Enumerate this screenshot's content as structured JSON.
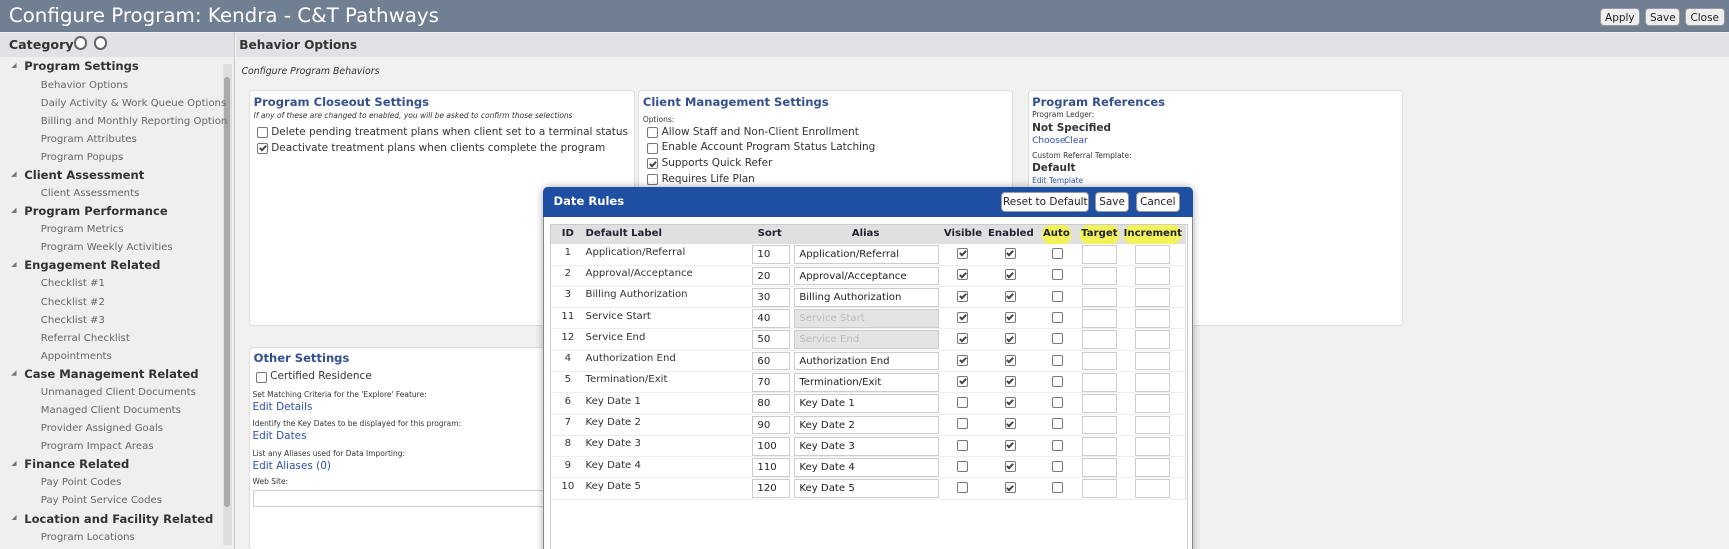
{
  "header": {
    "title": "Configure Program: Kendra - C&T Pathways",
    "buttons": [
      "Apply",
      "Save",
      "Close"
    ]
  },
  "sidebar": {
    "heading": "Category",
    "groups": [
      {
        "name": "Program Settings",
        "items": [
          "Behavior Options",
          "Daily Activity & Work Queue Options",
          "Billing and Monthly Reporting Option",
          "Program Attributes",
          "Program Popups"
        ]
      },
      {
        "name": "Client Assessment",
        "items": [
          "Client Assessments"
        ]
      },
      {
        "name": "Program Performance",
        "items": [
          "Program Metrics",
          "Program Weekly Activities"
        ]
      },
      {
        "name": "Engagement Related",
        "items": [
          "Checklist #1",
          "Checklist #2",
          "Checklist #3",
          "Referral Checklist",
          "Appointments"
        ]
      },
      {
        "name": "Case Management Related",
        "items": [
          "Unmanaged Client Documents",
          "Managed Client Documents",
          "Provider Assigned Goals",
          "Program Impact Areas"
        ]
      },
      {
        "name": "Finance Related",
        "items": [
          "Pay Point Codes",
          "Pay Point Service Codes"
        ]
      },
      {
        "name": "Location and Facility Related",
        "items": [
          "Program Locations"
        ]
      }
    ]
  },
  "main": {
    "heading": "Behavior Options",
    "subtitle": "Configure Program Behaviors",
    "closeout": {
      "title": "Program Closeout Settings",
      "note": "If any of these are changed to enabled, you will be asked to confirm those selections",
      "options": [
        {
          "label": "Delete pending treatment plans when client set to a terminal status",
          "checked": false
        },
        {
          "label": "Deactivate treatment plans when clients complete the program",
          "checked": true
        }
      ]
    },
    "client_management": {
      "title": "Client Management Settings",
      "options_label": "Options:",
      "options": [
        {
          "label": "Allow Staff and Non-Client Enrollment",
          "checked": false
        },
        {
          "label": "Enable Account Program Status Latching",
          "checked": false
        },
        {
          "label": "Supports Quick Refer",
          "checked": true
        },
        {
          "label": "Requires Life Plan",
          "checked": false
        }
      ]
    },
    "references": {
      "title": "Program References",
      "ledger_label": "Program Ledger:",
      "ledger_value": "Not Specified",
      "ledger_links": [
        "Choose",
        "Clear"
      ],
      "template_label": "Custom Referral Template:",
      "template_value": "Default",
      "template_link": "Edit Template"
    },
    "other": {
      "title": "Other Settings",
      "options": [
        {
          "label": "Certified Residence",
          "checked": false
        }
      ],
      "items": [
        {
          "label": "Set Matching Criteria for the 'Explore' Feature:",
          "link": "Edit Details"
        },
        {
          "label": "Identify the Key Dates to be displayed for this program:",
          "link": "Edit Dates"
        },
        {
          "label": "List any Aliases used for Data Importing:",
          "link": "Edit Aliases (0)"
        }
      ],
      "website_label": "Web Site:"
    }
  },
  "dialog": {
    "title": "Date Rules",
    "buttons": [
      "Reset to Default",
      "Save",
      "Cancel"
    ],
    "columns": [
      "ID",
      "Default Label",
      "Sort",
      "Alias",
      "Visible",
      "Enabled",
      "Auto",
      "Target",
      "Increment"
    ],
    "rows": [
      {
        "id": 1,
        "label": "Application/Referral",
        "sort": 10,
        "alias": "Application/Referral",
        "alias_disabled": false,
        "visible": true,
        "enabled": true,
        "auto": false
      },
      {
        "id": 2,
        "label": "Approval/Acceptance",
        "sort": 20,
        "alias": "Approval/Acceptance",
        "alias_disabled": false,
        "visible": true,
        "enabled": true,
        "auto": false
      },
      {
        "id": 3,
        "label": "Billing Authorization",
        "sort": 30,
        "alias": "Billing Authorization",
        "alias_disabled": false,
        "visible": true,
        "enabled": true,
        "auto": false
      },
      {
        "id": 11,
        "label": "Service Start",
        "sort": 40,
        "alias": "Service Start",
        "alias_disabled": true,
        "visible": true,
        "enabled": true,
        "auto": false
      },
      {
        "id": 12,
        "label": "Service End",
        "sort": 50,
        "alias": "Service End",
        "alias_disabled": true,
        "visible": true,
        "enabled": true,
        "auto": false
      },
      {
        "id": 4,
        "label": "Authorization End",
        "sort": 60,
        "alias": "Authorization End",
        "alias_disabled": false,
        "visible": true,
        "enabled": true,
        "auto": false
      },
      {
        "id": 5,
        "label": "Termination/Exit",
        "sort": 70,
        "alias": "Termination/Exit",
        "alias_disabled": false,
        "visible": true,
        "enabled": true,
        "auto": false
      },
      {
        "id": 6,
        "label": "Key Date 1",
        "sort": 80,
        "alias": "Key Date 1",
        "alias_disabled": false,
        "visible": false,
        "enabled": true,
        "auto": false
      },
      {
        "id": 7,
        "label": "Key Date 2",
        "sort": 90,
        "alias": "Key Date 2",
        "alias_disabled": false,
        "visible": false,
        "enabled": true,
        "auto": false
      },
      {
        "id": 8,
        "label": "Key Date 3",
        "sort": 100,
        "alias": "Key Date 3",
        "alias_disabled": false,
        "visible": false,
        "enabled": true,
        "auto": false
      },
      {
        "id": 9,
        "label": "Key Date 4",
        "sort": 110,
        "alias": "Key Date 4",
        "alias_disabled": false,
        "visible": false,
        "enabled": true,
        "auto": false
      },
      {
        "id": 10,
        "label": "Key Date 5",
        "sort": 120,
        "alias": "Key Date 5",
        "alias_disabled": false,
        "visible": false,
        "enabled": true,
        "auto": false
      }
    ]
  }
}
